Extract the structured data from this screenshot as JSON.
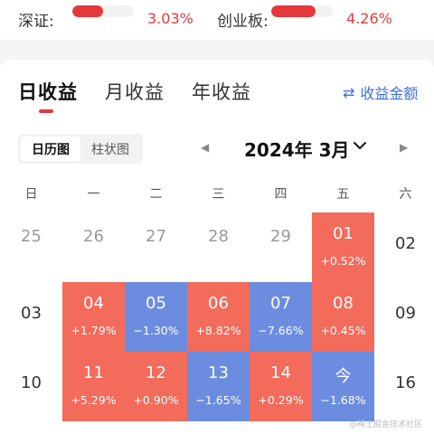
{
  "indices": [
    {
      "label": "深证:",
      "value": "3.03%",
      "fill": 0.5
    },
    {
      "label": "创业板:",
      "value": "4.26%",
      "fill": 0.72
    }
  ],
  "tabs": {
    "daily": "日收益",
    "monthly": "月收益",
    "yearly": "年收益"
  },
  "amount_link": {
    "icon": "swap-icon",
    "label": "收益金额"
  },
  "view_toggle": {
    "calendar": "日历图",
    "bar": "柱状图"
  },
  "month": {
    "prev": "◀",
    "title": "2024年 3月",
    "next": "▶"
  },
  "weekdays": [
    "日",
    "一",
    "二",
    "三",
    "四",
    "五",
    "六"
  ],
  "rows": [
    [
      {
        "day": "25",
        "state": "muted"
      },
      {
        "day": "26",
        "state": "muted"
      },
      {
        "day": "27",
        "state": "muted"
      },
      {
        "day": "28",
        "state": "muted"
      },
      {
        "day": "29",
        "state": "muted"
      },
      {
        "day": "01",
        "state": "up",
        "pct": "+0.52%"
      },
      {
        "day": "02",
        "state": "plain"
      }
    ],
    [
      {
        "day": "03",
        "state": "plain"
      },
      {
        "day": "04",
        "state": "up",
        "pct": "+1.79%"
      },
      {
        "day": "05",
        "state": "down",
        "pct": "−1.30%"
      },
      {
        "day": "06",
        "state": "up",
        "pct": "+8.82%"
      },
      {
        "day": "07",
        "state": "down",
        "pct": "−7.66%"
      },
      {
        "day": "08",
        "state": "up",
        "pct": "+0.45%"
      },
      {
        "day": "09",
        "state": "plain"
      }
    ],
    [
      {
        "day": "10",
        "state": "plain"
      },
      {
        "day": "11",
        "state": "up",
        "pct": "+5.29%"
      },
      {
        "day": "12",
        "state": "up",
        "pct": "+0.90%"
      },
      {
        "day": "13",
        "state": "down",
        "pct": "−1.65%"
      },
      {
        "day": "14",
        "state": "up",
        "pct": "+0.29%"
      },
      {
        "day": "今",
        "state": "down",
        "pct": "−1.68%"
      },
      {
        "day": "16",
        "state": "plain"
      }
    ]
  ],
  "watermark": "@稀土掘金技术社区",
  "colors": {
    "up": "#f26b5b",
    "down": "#6b8cdf",
    "accent": "#e4393c",
    "link": "#3f6fd8"
  }
}
